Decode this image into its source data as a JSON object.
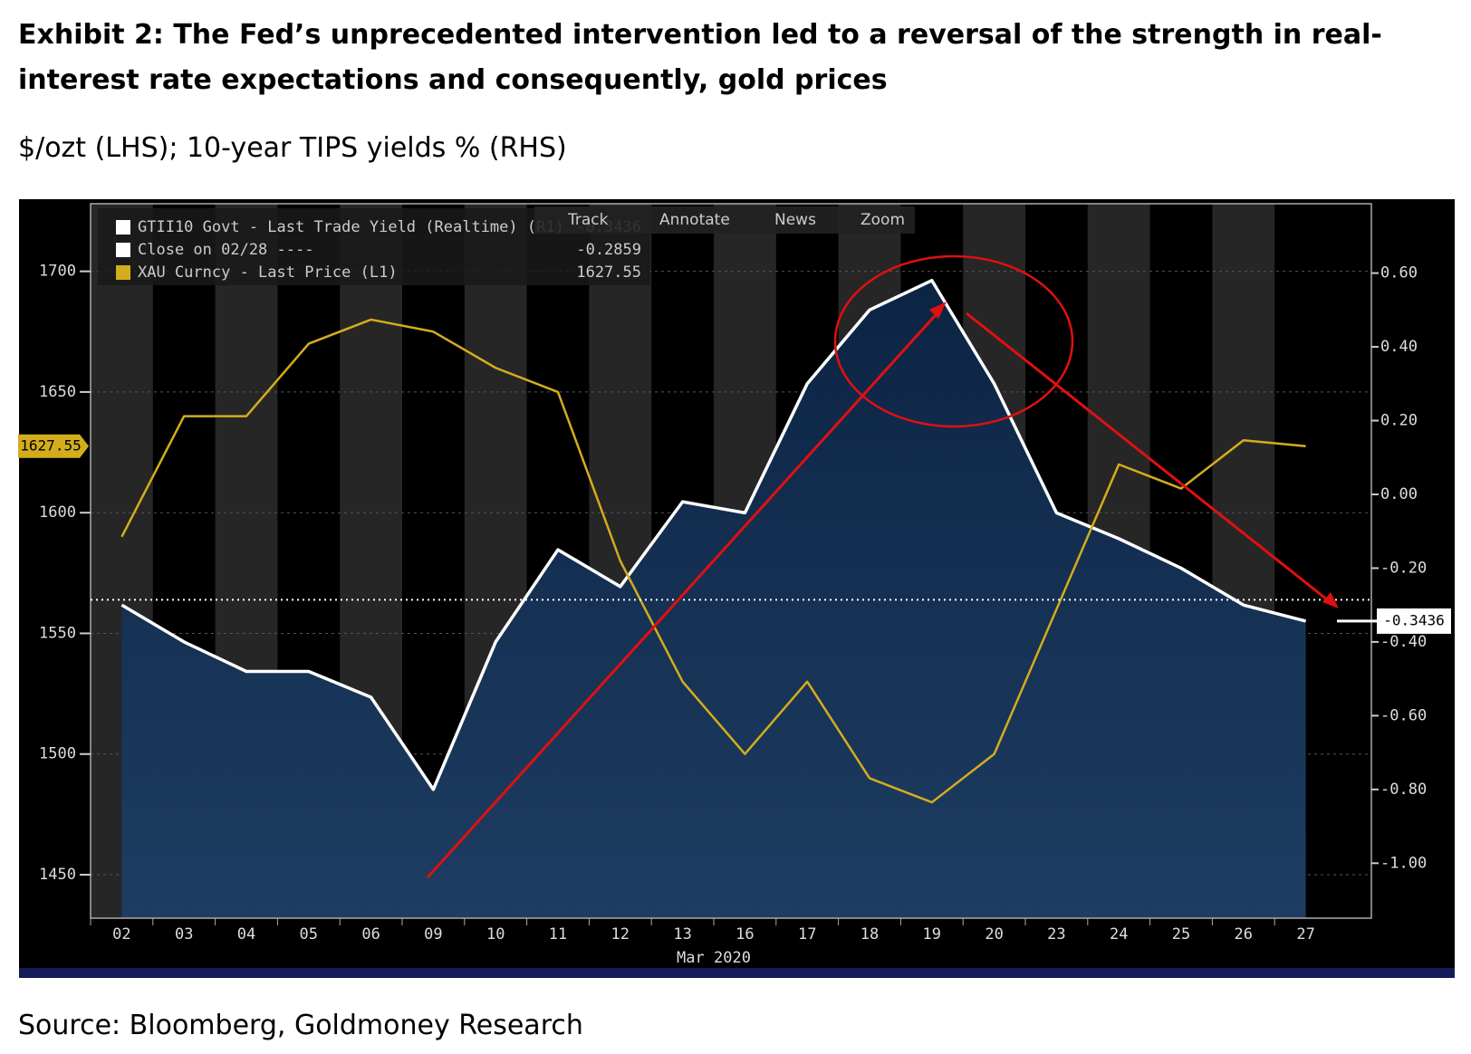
{
  "chart_data": {
    "type": "line",
    "title": "Exhibit 2: The Fed’s unprecedented intervention led to a reversal of the strength in real-interest rate expectations and consequently, gold prices",
    "subtitle": "$/ozt (LHS); 10-year TIPS yields % (RHS)",
    "source": "Source: Bloomberg, Goldmoney Research",
    "xlabel": "Mar 2020",
    "toolbar": [
      "Track",
      "Annotate",
      "News",
      "Zoom"
    ],
    "categories": [
      "02",
      "03",
      "04",
      "05",
      "06",
      "09",
      "10",
      "11",
      "12",
      "13",
      "16",
      "17",
      "18",
      "19",
      "20",
      "23",
      "24",
      "25",
      "26",
      "27"
    ],
    "series": [
      {
        "name": "GTII10 Govt - Last Trade Yield (Realtime) (R1)",
        "color": "#ffffff",
        "axis": "y2",
        "values": [
          -0.3,
          -0.4,
          -0.48,
          -0.48,
          -0.55,
          -0.8,
          -0.4,
          -0.15,
          -0.25,
          -0.02,
          -0.05,
          0.3,
          0.5,
          0.58,
          0.3,
          -0.05,
          -0.12,
          -0.2,
          -0.3,
          -0.3436
        ]
      },
      {
        "name": "XAU Curncy - Last Price (L1)",
        "color": "#d4ad1c",
        "axis": "y",
        "values": [
          1590,
          1640,
          1640,
          1670,
          1680,
          1675,
          1660,
          1650,
          1580,
          1530,
          1500,
          1530,
          1490,
          1480,
          1500,
          1560,
          1620,
          1610,
          1630,
          1627.55
        ]
      }
    ],
    "reference_line": {
      "name": "Close on 02/28 ----",
      "value": -0.2859,
      "axis": "y2"
    },
    "ylim": [
      1432,
      1728
    ],
    "yticks": [
      1450,
      1500,
      1550,
      1600,
      1650,
      1700
    ],
    "y2lim": [
      -1.149,
      0.788
    ],
    "y2ticks": [
      {
        "value": 0.6,
        "label": "0.60"
      },
      {
        "value": 0.4,
        "label": "0.40"
      },
      {
        "value": 0.2,
        "label": "0.20"
      },
      {
        "value": 0,
        "label": "0.00"
      },
      {
        "value": -0.2,
        "label": "-0.20"
      },
      {
        "value": -0.4,
        "label": "-0.40"
      },
      {
        "value": -0.6,
        "label": "-0.60"
      },
      {
        "value": -0.8,
        "label": "-0.80"
      },
      {
        "value": -1.0,
        "label": "-1.00"
      }
    ],
    "grid": true
  }
}
